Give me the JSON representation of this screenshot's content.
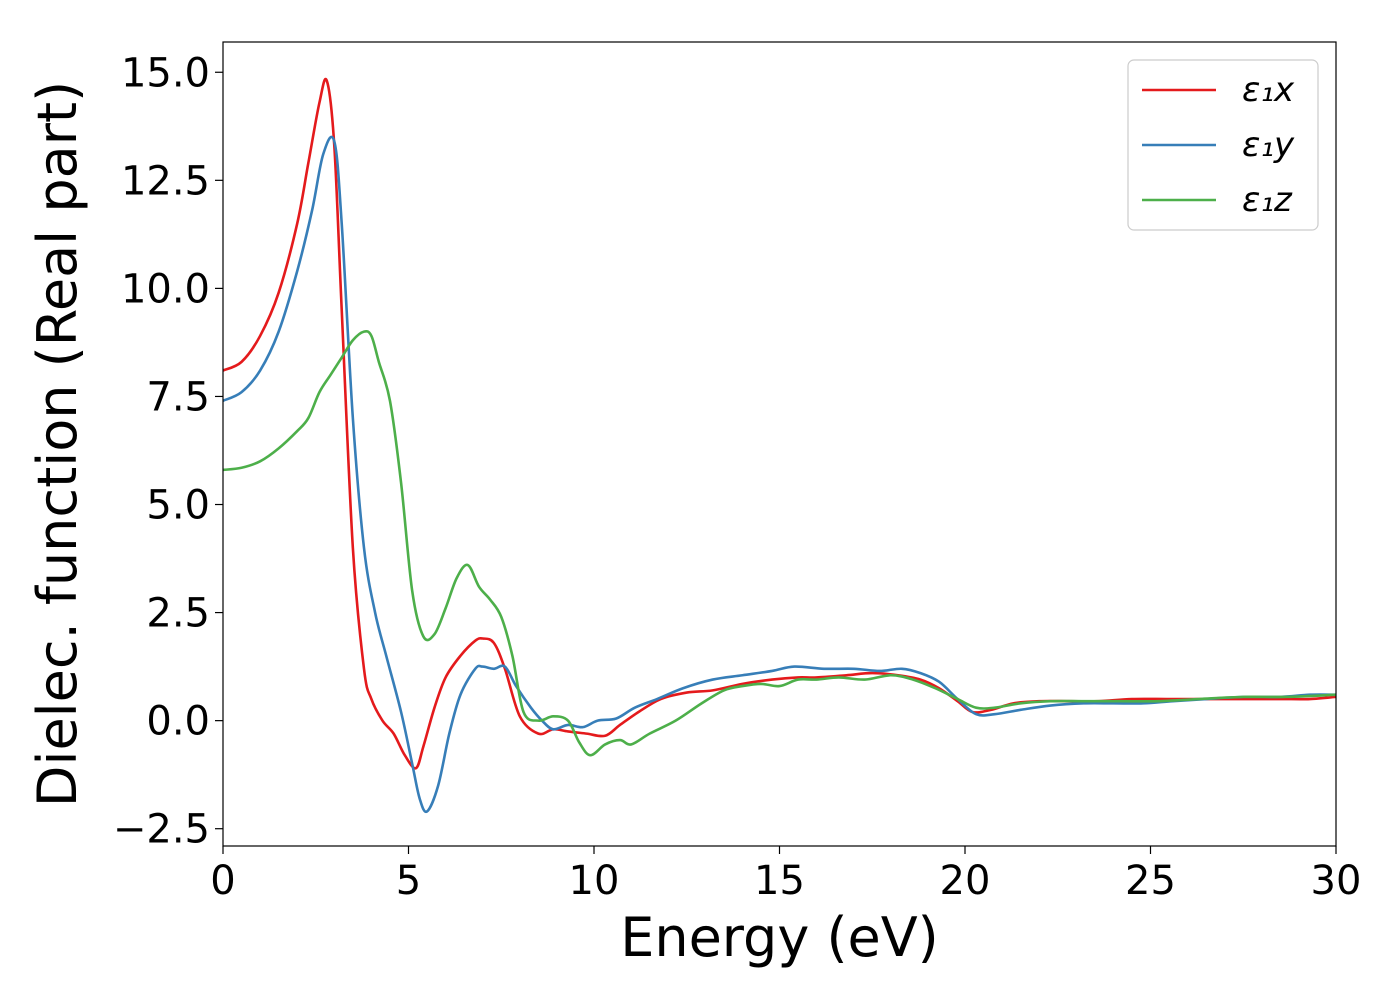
{
  "chart_data": {
    "type": "line",
    "title": "",
    "xlabel": "Energy (eV)",
    "ylabel": "Dielec. function (Real part)",
    "xlim": [
      0,
      30
    ],
    "ylim": [
      -2.9,
      15.7
    ],
    "xticks": [
      0,
      5,
      10,
      15,
      20,
      25,
      30
    ],
    "xtick_labels": [
      "0",
      "5",
      "10",
      "15",
      "20",
      "25",
      "30"
    ],
    "yticks": [
      -2.5,
      0,
      2.5,
      5,
      7.5,
      10,
      12.5,
      15
    ],
    "ytick_labels": [
      "−2.5",
      "0.0",
      "2.5",
      "5.0",
      "7.5",
      "10.0",
      "12.5",
      "15.0"
    ],
    "grid": false,
    "legend_position": "top-right",
    "series": [
      {
        "name": "ε₁x",
        "color": "#e41a1c",
        "x": [
          0,
          0.5,
          1,
          1.5,
          2,
          2.3,
          2.6,
          2.8,
          3.0,
          3.2,
          3.5,
          3.8,
          4.0,
          4.3,
          4.6,
          4.9,
          5.2,
          5.4,
          5.7,
          6.0,
          6.4,
          6.8,
          7.0,
          7.3,
          7.6,
          8.0,
          8.5,
          8.9,
          9.3,
          9.8,
          10.3,
          10.7,
          11.2,
          11.8,
          12.5,
          13.2,
          14,
          14.8,
          15.5,
          16,
          16.8,
          17.5,
          18.2,
          18.8,
          19.3,
          19.8,
          20.2,
          20.7,
          21.3,
          22,
          22.8,
          23.6,
          24.5,
          25.5,
          26.5,
          27.5,
          28.5,
          29.3,
          30
        ],
        "y": [
          8.1,
          8.3,
          8.9,
          9.9,
          11.5,
          12.9,
          14.3,
          14.8,
          13.3,
          9.5,
          4.0,
          1.2,
          0.5,
          0.0,
          -0.3,
          -0.8,
          -1.1,
          -0.6,
          0.3,
          1.0,
          1.5,
          1.85,
          1.9,
          1.8,
          1.2,
          0.1,
          -0.3,
          -0.2,
          -0.25,
          -0.3,
          -0.35,
          -0.1,
          0.2,
          0.5,
          0.65,
          0.7,
          0.85,
          0.95,
          1.0,
          1.0,
          1.05,
          1.1,
          1.05,
          0.95,
          0.75,
          0.45,
          0.2,
          0.25,
          0.4,
          0.45,
          0.45,
          0.45,
          0.5,
          0.5,
          0.5,
          0.5,
          0.5,
          0.5,
          0.55
        ]
      },
      {
        "name": "ε₁y",
        "color": "#377eb8",
        "x": [
          0,
          0.5,
          1,
          1.5,
          2,
          2.4,
          2.7,
          3.0,
          3.2,
          3.5,
          3.8,
          4.1,
          4.4,
          4.8,
          5.1,
          5.3,
          5.5,
          5.8,
          6.1,
          6.4,
          6.8,
          7.0,
          7.3,
          7.6,
          7.9,
          8.3,
          8.6,
          8.9,
          9.3,
          9.7,
          10.1,
          10.6,
          11.1,
          11.7,
          12.4,
          13.2,
          14,
          14.8,
          15.4,
          16.2,
          17,
          17.7,
          18.3,
          18.8,
          19.3,
          19.8,
          20.3,
          20.8,
          21.5,
          22.3,
          23.2,
          24,
          24.8,
          25.6,
          26.5,
          27.5,
          28.5,
          29.3,
          30
        ],
        "y": [
          7.4,
          7.6,
          8.1,
          9.0,
          10.4,
          11.8,
          13.1,
          13.4,
          11.5,
          7.0,
          4.0,
          2.5,
          1.5,
          0.2,
          -1.0,
          -1.8,
          -2.1,
          -1.5,
          -0.3,
          0.6,
          1.2,
          1.25,
          1.2,
          1.25,
          0.8,
          0.3,
          0.0,
          -0.2,
          -0.1,
          -0.15,
          0.0,
          0.05,
          0.3,
          0.5,
          0.75,
          0.95,
          1.05,
          1.15,
          1.25,
          1.2,
          1.2,
          1.15,
          1.2,
          1.1,
          0.9,
          0.5,
          0.15,
          0.15,
          0.25,
          0.35,
          0.4,
          0.4,
          0.4,
          0.45,
          0.5,
          0.55,
          0.55,
          0.6,
          0.6
        ]
      },
      {
        "name": "ε₁z",
        "color": "#4daf4a",
        "x": [
          0,
          0.5,
          1,
          1.5,
          2,
          2.3,
          2.6,
          2.9,
          3.2,
          3.5,
          3.8,
          4.0,
          4.2,
          4.5,
          4.8,
          5.1,
          5.4,
          5.7,
          6.0,
          6.3,
          6.6,
          6.9,
          7.2,
          7.5,
          7.8,
          8.1,
          8.5,
          8.9,
          9.3,
          9.6,
          9.9,
          10.3,
          10.7,
          11.0,
          11.5,
          12.2,
          12.9,
          13.5,
          14,
          14.5,
          15,
          15.5,
          16,
          16.6,
          17.3,
          18,
          18.6,
          19.2,
          19.8,
          20.3,
          20.8,
          21.5,
          22.3,
          23.2,
          24.2,
          25.2,
          26.3,
          27.5,
          28.7,
          30
        ],
        "y": [
          5.8,
          5.85,
          6.0,
          6.3,
          6.7,
          7.0,
          7.6,
          8.0,
          8.4,
          8.8,
          9.0,
          8.9,
          8.3,
          7.4,
          5.5,
          3.0,
          1.95,
          2.0,
          2.6,
          3.3,
          3.6,
          3.1,
          2.8,
          2.4,
          1.5,
          0.2,
          0.0,
          0.1,
          0.0,
          -0.5,
          -0.8,
          -0.55,
          -0.45,
          -0.55,
          -0.3,
          0.0,
          0.4,
          0.7,
          0.8,
          0.85,
          0.8,
          0.95,
          0.95,
          1.0,
          0.95,
          1.05,
          0.95,
          0.75,
          0.5,
          0.3,
          0.3,
          0.4,
          0.45,
          0.45,
          0.45,
          0.45,
          0.5,
          0.55,
          0.55,
          0.6
        ]
      }
    ]
  }
}
